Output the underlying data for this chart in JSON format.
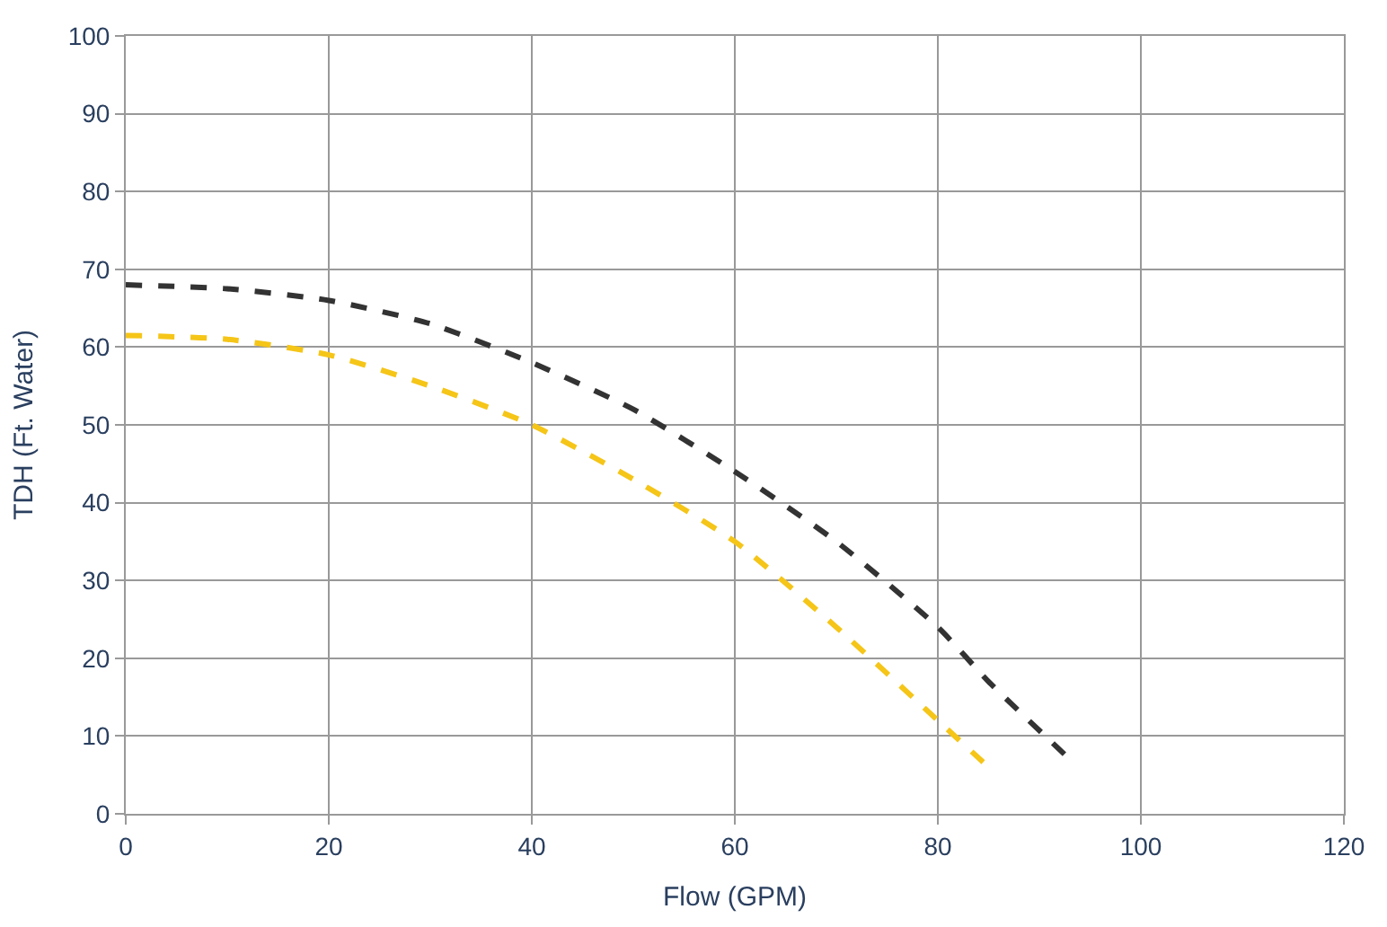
{
  "chart_data": {
    "type": "line",
    "xlabel": "Flow (GPM)",
    "ylabel": "TDH (Ft. Water)",
    "xlim": [
      0,
      120
    ],
    "xticks": [
      0,
      20,
      40,
      60,
      80,
      100,
      120
    ],
    "ylim": [
      0,
      100
    ],
    "yticks": [
      0,
      10,
      20,
      30,
      40,
      50,
      60,
      70,
      80,
      90,
      100
    ],
    "grid": true,
    "line_style": "dashed",
    "marker": "none",
    "series": [
      {
        "color": "#333333",
        "x": [
          0,
          10,
          20,
          30,
          40,
          50,
          60,
          70,
          80,
          85,
          93
        ],
        "values": [
          68,
          67.5,
          66,
          63,
          58,
          52,
          44,
          35,
          24,
          17,
          7
        ]
      },
      {
        "color": "#f5c518",
        "x": [
          0,
          10,
          20,
          30,
          40,
          50,
          60,
          70,
          80,
          85
        ],
        "values": [
          61.5,
          61,
          59,
          55,
          50,
          43,
          35,
          24,
          12,
          6
        ]
      }
    ]
  }
}
